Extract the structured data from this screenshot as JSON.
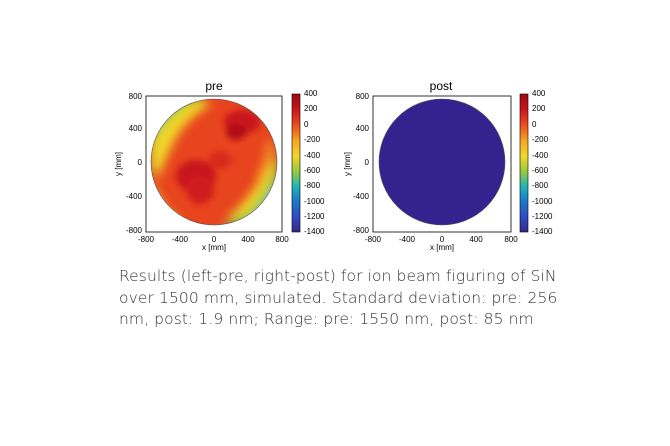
{
  "chart_data": [
    {
      "type": "heatmap",
      "title": "pre",
      "xlabel": "x [mm]",
      "ylabel": "y [mm]",
      "xlim": [
        -800,
        800
      ],
      "ylim": [
        -800,
        800
      ],
      "x_ticks": [
        "-800",
        "-400",
        "0",
        "400",
        "800"
      ],
      "y_ticks": [
        "800",
        "400",
        "0",
        "-400",
        "-800"
      ],
      "colorbar_ticks": [
        "400",
        "200",
        "0",
        "-200",
        "-400",
        "-600",
        "-800",
        "-1000",
        "-1200",
        "-1400"
      ],
      "colorbar_range": [
        -1400,
        400
      ],
      "aperture_radius_mm": 750,
      "standard_deviation_nm": 256,
      "range_nm": 1550
    },
    {
      "type": "heatmap",
      "title": "post",
      "xlabel": "x [mm]",
      "ylabel": "y [mm]",
      "xlim": [
        -800,
        800
      ],
      "ylim": [
        -800,
        800
      ],
      "x_ticks": [
        "-800",
        "-400",
        "0",
        "400",
        "800"
      ],
      "y_ticks": [
        "800",
        "400",
        "0",
        "-400",
        "-800"
      ],
      "colorbar_ticks": [
        "400",
        "200",
        "0",
        "-200",
        "-400",
        "-600",
        "-800",
        "-1000",
        "-1200",
        "-1400"
      ],
      "colorbar_range": [
        -1400,
        400
      ],
      "aperture_radius_mm": 750,
      "standard_deviation_nm": 1.9,
      "range_nm": 85
    }
  ],
  "caption": "Results (left-pre, right-post) for ion beam figuring of SiN over 1500 mm, simulated. Standard deviation: pre: 256 nm, post: 1.9 nm; Range: pre: 1550 nm, post: 85 nm",
  "colors": {
    "post_surface": "#34228f",
    "colormap": [
      "#352a87",
      "#2f4bc4",
      "#1a78c8",
      "#22b4b8",
      "#9bc93b",
      "#f2d62a",
      "#f5a623",
      "#ea4a1f",
      "#c9141c",
      "#9a0a12"
    ]
  }
}
